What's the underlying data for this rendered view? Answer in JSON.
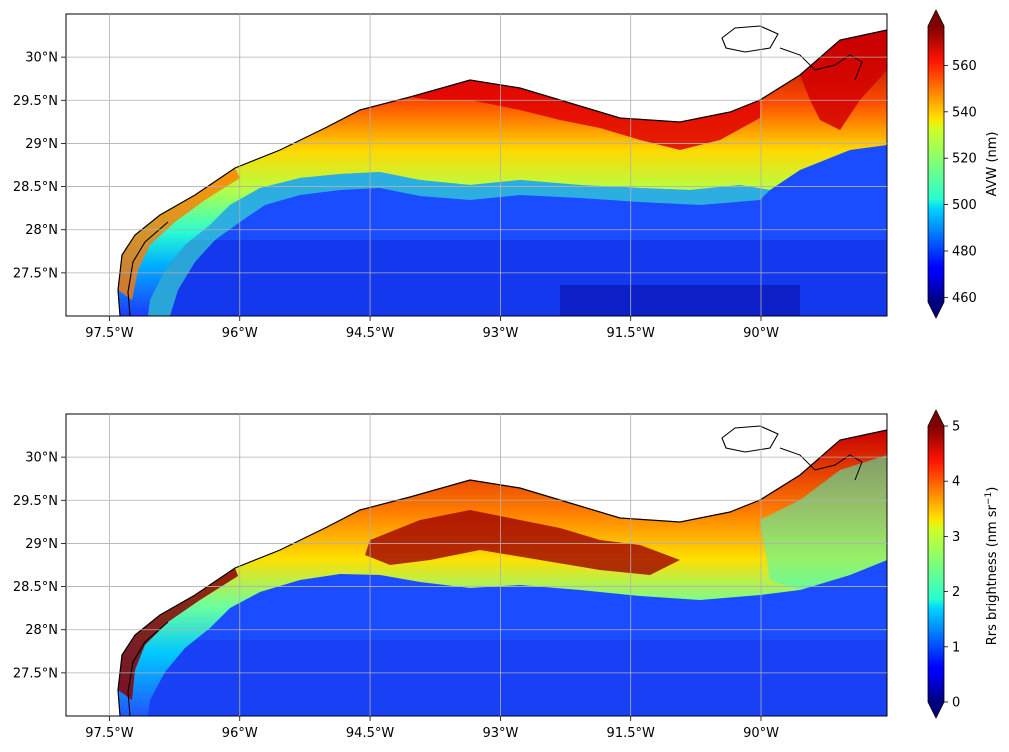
{
  "chart_data": [
    {
      "type": "heatmap",
      "panel": "top",
      "xlabel": "",
      "ylabel": "",
      "xlim": [
        -98.0,
        -88.55
      ],
      "ylim": [
        27.0,
        30.5
      ],
      "grid": true,
      "x_ticks": [
        -97.5,
        -96,
        -94.5,
        -93,
        -91.5,
        -90
      ],
      "x_tick_labels": [
        "97.5°W",
        "96°W",
        "94.5°W",
        "93°W",
        "91.5°W",
        "90°W"
      ],
      "y_ticks": [
        27.5,
        28,
        28.5,
        29,
        29.5,
        30
      ],
      "y_tick_labels": [
        "27.5°N",
        "28°N",
        "28.5°N",
        "29°N",
        "29.5°N",
        "30°N"
      ],
      "colorbar": {
        "label": "AVW (nm)",
        "colormap": "jet",
        "range": [
          458,
          577
        ],
        "extend": "both",
        "ticks": [
          460,
          480,
          500,
          520,
          540,
          560
        ],
        "tick_labels": [
          "460",
          "480",
          "500",
          "520",
          "540",
          "560"
        ]
      },
      "field_description": {
        "offshore": 475,
        "outer_shelf": 500,
        "mid_shelf": 530,
        "near_coast": 560
      }
    },
    {
      "type": "heatmap",
      "panel": "bottom",
      "xlabel": "",
      "ylabel": "",
      "xlim": [
        -98.0,
        -88.55
      ],
      "ylim": [
        27.0,
        30.5
      ],
      "grid": true,
      "x_ticks": [
        -97.5,
        -96,
        -94.5,
        -93,
        -91.5,
        -90
      ],
      "x_tick_labels": [
        "97.5°W",
        "96°W",
        "94.5°W",
        "93°W",
        "91.5°W",
        "90°W"
      ],
      "y_ticks": [
        27.5,
        28,
        28.5,
        29,
        29.5,
        30
      ],
      "y_tick_labels": [
        "27.5°N",
        "28°N",
        "28.5°N",
        "29°N",
        "29.5°N",
        "30°N"
      ],
      "colorbar": {
        "label": "Rrs brightness (nm sr",
        "label_superscript": "−1",
        "label_close": ")",
        "colormap": "jet",
        "range": [
          0,
          5
        ],
        "extend": "both",
        "ticks": [
          0,
          1,
          2,
          3,
          4,
          5
        ],
        "tick_labels": [
          "0",
          "1",
          "2",
          "3",
          "4",
          "5"
        ]
      },
      "field_description": {
        "offshore": 0.8,
        "outer_shelf": 2.0,
        "mid_shelf": 3.0,
        "near_coast": 4.6
      }
    }
  ],
  "colors": {
    "jet_dark_blue": "#00007f",
    "jet_blue": "#0000ff",
    "jet_cyan": "#00ffff",
    "jet_yellow": "#ffff00",
    "jet_red": "#ff0000",
    "jet_dark_red": "#7f0000",
    "coastline": "#000000",
    "gridline": "#b0b0b0"
  }
}
